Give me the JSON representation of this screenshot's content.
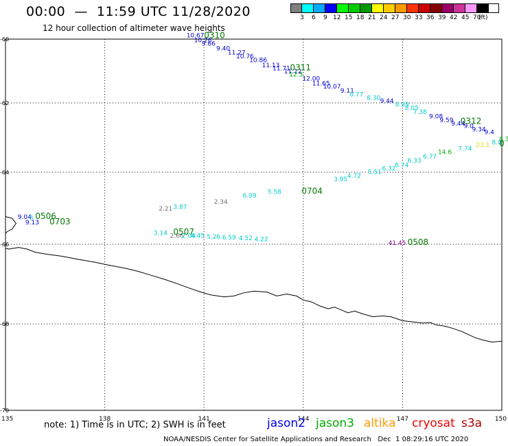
{
  "header": {
    "title": "00:00  —  11:59 UTC 11/28/2020",
    "subtitle": "12 hour collection of altimeter wave heights"
  },
  "legend": {
    "colors": [
      "#808080",
      "#00ffff",
      "#00aaff",
      "#0000ff",
      "#00ff00",
      "#00cc00",
      "#009900",
      "#ffff00",
      "#ffcc00",
      "#ff9900",
      "#ff3300",
      "#cc0000",
      "#880000",
      "#990066",
      "#cc3399",
      "#ff99ff",
      "#000000"
    ],
    "labels": [
      "3",
      "6",
      "9",
      "12",
      "15",
      "18",
      "21",
      "24",
      "27",
      "30",
      "33",
      "36",
      "39",
      "42",
      "45",
      "70",
      "(ft)"
    ]
  },
  "map": {
    "lon_ticks": [
      "135",
      "138",
      "141",
      "144",
      "147",
      "150"
    ],
    "lat_ticks": [
      "-60",
      "-62",
      "-64",
      "-66",
      "-68",
      "-70"
    ],
    "ranges": {
      "lon": [
        135,
        150
      ],
      "lat": [
        -70,
        -60
      ]
    },
    "grid": true,
    "obs_colors": {
      "cyan": "#00cccc",
      "blue": "#0000cc",
      "gray": "#707070",
      "green": "#00aa00",
      "yellow": "#dddd00",
      "purple": "#880088",
      "dgreen": "#007700"
    },
    "observations": [
      {
        "t": "10.67",
        "c": "blue",
        "lon": 140.47,
        "lat": -59.95
      },
      {
        "t": "10.26",
        "c": "blue",
        "lon": 140.7,
        "lat": -60.1
      },
      {
        "t": "9.66",
        "c": "blue",
        "lon": 140.93,
        "lat": -60.2
      },
      {
        "t": "9.40",
        "c": "blue",
        "lon": 141.37,
        "lat": -60.35
      },
      {
        "t": "11.27",
        "c": "blue",
        "lon": 141.72,
        "lat": -60.48
      },
      {
        "t": "10.76",
        "c": "blue",
        "lon": 141.97,
        "lat": -60.6
      },
      {
        "t": "10.86",
        "c": "blue",
        "lon": 142.37,
        "lat": -60.72
      },
      {
        "t": "11.13",
        "c": "blue",
        "lon": 142.75,
        "lat": -60.88
      },
      {
        "t": "11.71",
        "c": "blue",
        "lon": 143.07,
        "lat": -60.98
      },
      {
        "t": "11.12",
        "c": "blue",
        "lon": 143.42,
        "lat": -61.08
      },
      {
        "t": "12.3",
        "c": "green",
        "lon": 143.57,
        "lat": -61.17
      },
      {
        "t": "12.00",
        "c": "blue",
        "lon": 143.97,
        "lat": -61.3
      },
      {
        "t": "11.65",
        "c": "blue",
        "lon": 144.27,
        "lat": -61.45
      },
      {
        "t": "10.07",
        "c": "blue",
        "lon": 144.6,
        "lat": -61.55
      },
      {
        "t": "9.11",
        "c": "blue",
        "lon": 145.12,
        "lat": -61.68
      },
      {
        "t": "8.77",
        "c": "cyan",
        "lon": 145.4,
        "lat": -61.8
      },
      {
        "t": "8.30",
        "c": "cyan",
        "lon": 145.92,
        "lat": -61.9
      },
      {
        "t": "9.44",
        "c": "blue",
        "lon": 146.32,
        "lat": -62.0
      },
      {
        "t": "8.99",
        "c": "cyan",
        "lon": 146.78,
        "lat": -62.1
      },
      {
        "t": "8.05",
        "c": "cyan",
        "lon": 147.07,
        "lat": -62.2
      },
      {
        "t": "7.38",
        "c": "cyan",
        "lon": 147.32,
        "lat": -62.32
      },
      {
        "t": "9.08",
        "c": "blue",
        "lon": 147.8,
        "lat": -62.45
      },
      {
        "t": "9.59",
        "c": "blue",
        "lon": 148.12,
        "lat": -62.55
      },
      {
        "t": "9.44",
        "c": "blue",
        "lon": 148.47,
        "lat": -62.65
      },
      {
        "t": "9.0",
        "c": "blue",
        "lon": 148.85,
        "lat": -62.72
      },
      {
        "t": "9.34",
        "c": "blue",
        "lon": 149.1,
        "lat": -62.82
      },
      {
        "t": "9.4",
        "c": "blue",
        "lon": 149.47,
        "lat": -62.9
      },
      {
        "t": "0312",
        "c": "dgreen",
        "lon": 148.75,
        "lat": -62.6,
        "big": true
      },
      {
        "t": "8.0",
        "c": "cyan",
        "lon": 149.7,
        "lat": -63.2
      },
      {
        "t": "8.3",
        "c": "green",
        "lon": 149.92,
        "lat": -63.1
      },
      {
        "t": "0",
        "c": "dgreen",
        "lon": 149.92,
        "lat": -63.25,
        "big": true
      },
      {
        "t": "23.1",
        "c": "yellow",
        "lon": 149.22,
        "lat": -63.27
      },
      {
        "t": "7.74",
        "c": "cyan",
        "lon": 148.68,
        "lat": -63.38
      },
      {
        "t": "14.6",
        "c": "green",
        "lon": 148.07,
        "lat": -63.48
      },
      {
        "t": "6.77",
        "c": "cyan",
        "lon": 147.62,
        "lat": -63.6
      },
      {
        "t": "6.33",
        "c": "cyan",
        "lon": 147.15,
        "lat": -63.72
      },
      {
        "t": "6.74",
        "c": "cyan",
        "lon": 146.77,
        "lat": -63.85
      },
      {
        "t": "6.32",
        "c": "cyan",
        "lon": 146.38,
        "lat": -63.95
      },
      {
        "t": "5.51",
        "c": "cyan",
        "lon": 145.95,
        "lat": -64.05
      },
      {
        "t": "4.72",
        "c": "cyan",
        "lon": 145.33,
        "lat": -64.15
      },
      {
        "t": "3.95",
        "c": "cyan",
        "lon": 144.92,
        "lat": -64.25
      },
      {
        "t": "0704",
        "c": "dgreen",
        "lon": 143.95,
        "lat": -64.6,
        "big": true
      },
      {
        "t": "5.58",
        "c": "cyan",
        "lon": 142.92,
        "lat": -64.6
      },
      {
        "t": "6.09",
        "c": "cyan",
        "lon": 142.17,
        "lat": -64.7
      },
      {
        "t": "2.34",
        "c": "gray",
        "lon": 141.3,
        "lat": -64.88
      },
      {
        "t": "2.21",
        "c": "gray",
        "lon": 139.63,
        "lat": -65.07
      },
      {
        "t": "3.87",
        "c": "cyan",
        "lon": 140.07,
        "lat": -65.02
      },
      {
        "t": "3.14",
        "c": "cyan",
        "lon": 139.48,
        "lat": -65.74
      },
      {
        "t": "0507",
        "c": "dgreen",
        "lon": 140.07,
        "lat": -65.73,
        "big": true
      },
      {
        "t": "2.66",
        "c": "gray",
        "lon": 139.97,
        "lat": -65.82
      },
      {
        "t": "2.04",
        "c": "cyan",
        "lon": 140.33,
        "lat": -65.82
      },
      {
        "t": "4.45",
        "c": "cyan",
        "lon": 140.6,
        "lat": -65.82
      },
      {
        "t": "5.26",
        "c": "cyan",
        "lon": 141.08,
        "lat": -65.85
      },
      {
        "t": "6.59",
        "c": "cyan",
        "lon": 141.55,
        "lat": -65.87
      },
      {
        "t": "4.52",
        "c": "cyan",
        "lon": 142.05,
        "lat": -65.89
      },
      {
        "t": "4.22",
        "c": "cyan",
        "lon": 142.52,
        "lat": -65.91
      },
      {
        "t": "9.04",
        "c": "blue",
        "lon": 135.37,
        "lat": -65.3
      },
      {
        "t": "3",
        "c": "cyan",
        "lon": 135.72,
        "lat": -65.32
      },
      {
        "t": "0506",
        "c": "dgreen",
        "lon": 135.9,
        "lat": -65.3,
        "big": true
      },
      {
        "t": "9.13",
        "c": "blue",
        "lon": 135.6,
        "lat": -65.45
      },
      {
        "t": "0703",
        "c": "dgreen",
        "lon": 136.33,
        "lat": -65.45,
        "big": true
      },
      {
        "t": "41.45",
        "c": "purple",
        "lon": 146.57,
        "lat": -66.02
      },
      {
        "t": "0508",
        "c": "dgreen",
        "lon": 147.15,
        "lat": -66.02,
        "big": true
      },
      {
        "t": "0310",
        "c": "dgreen",
        "lon": 141.0,
        "lat": -59.97,
        "big": true
      },
      {
        "t": "0311",
        "c": "dgreen",
        "lon": 143.6,
        "lat": -60.98,
        "big": true
      }
    ],
    "coast": [
      [
        135,
        -65.23
      ],
      [
        135.2,
        -65.28
      ],
      [
        135.32,
        -65.42
      ],
      [
        135.2,
        -65.58
      ],
      [
        135.05,
        -65.65
      ],
      [
        135,
        -65.7
      ],
      [
        135,
        -66.1
      ],
      [
        135.1,
        -66.12
      ],
      [
        135.4,
        -66.08
      ],
      [
        135.65,
        -66.12
      ],
      [
        135.9,
        -66.2
      ],
      [
        136.25,
        -66.25
      ],
      [
        136.7,
        -66.3
      ],
      [
        137.2,
        -66.38
      ],
      [
        137.7,
        -66.45
      ],
      [
        138.1,
        -66.52
      ],
      [
        138.6,
        -66.6
      ],
      [
        139.0,
        -66.68
      ],
      [
        139.4,
        -66.78
      ],
      [
        139.8,
        -66.88
      ],
      [
        140.15,
        -66.98
      ],
      [
        140.55,
        -67.1
      ],
      [
        140.9,
        -67.2
      ],
      [
        141.2,
        -67.27
      ],
      [
        141.6,
        -67.32
      ],
      [
        141.9,
        -67.3
      ],
      [
        142.2,
        -67.22
      ],
      [
        142.5,
        -67.18
      ],
      [
        142.9,
        -67.2
      ],
      [
        143.2,
        -67.3
      ],
      [
        143.5,
        -67.25
      ],
      [
        143.8,
        -67.3
      ],
      [
        144.0,
        -67.4
      ],
      [
        144.25,
        -67.45
      ],
      [
        144.5,
        -67.55
      ],
      [
        144.75,
        -67.62
      ],
      [
        144.95,
        -67.58
      ],
      [
        145.15,
        -67.65
      ],
      [
        145.35,
        -67.72
      ],
      [
        145.55,
        -67.68
      ],
      [
        145.8,
        -67.75
      ],
      [
        146.1,
        -67.82
      ],
      [
        146.4,
        -67.8
      ],
      [
        146.65,
        -67.82
      ],
      [
        147.0,
        -67.92
      ],
      [
        147.3,
        -67.95
      ],
      [
        147.6,
        -67.98
      ],
      [
        147.85,
        -67.97
      ],
      [
        148.0,
        -68.02
      ],
      [
        148.25,
        -68.05
      ],
      [
        148.5,
        -68.1
      ],
      [
        148.8,
        -68.18
      ],
      [
        149.0,
        -68.25
      ],
      [
        149.2,
        -68.32
      ],
      [
        149.45,
        -68.38
      ],
      [
        149.7,
        -68.42
      ],
      [
        150,
        -68.4
      ]
    ]
  },
  "note": "note:  1) Time is in UTC;  2) SWH is in feet",
  "satellites": [
    {
      "name": "jason2",
      "color": "#0000ee"
    },
    {
      "name": "jason3",
      "color": "#00aa00"
    },
    {
      "name": "altika",
      "color": "#ff9900"
    },
    {
      "name": "cryosat",
      "color": "#ee0000"
    },
    {
      "name": "s3a",
      "color": "#aa0000"
    }
  ],
  "footer": {
    "org": "NOAA/NESDIS Center for Satellite Applications and Research",
    "timestamp": "Dec  1 08:29:16 UTC 2020"
  }
}
